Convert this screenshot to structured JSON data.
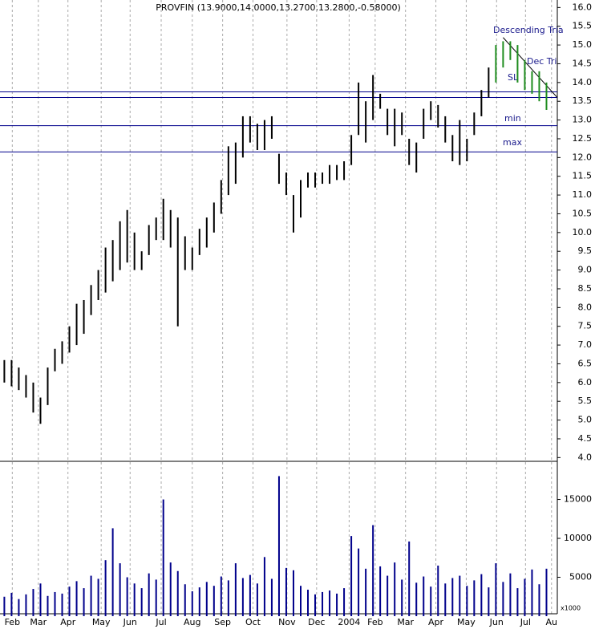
{
  "chart_data": {
    "type": "ohlc",
    "title": "PROVFIN (13.9000,14.0000,13.2700,13.2800,-0.58000)",
    "xlim": [
      -0.6,
      76.5
    ],
    "xticks": [
      {
        "value": 1.1,
        "label": "Feb"
      },
      {
        "value": 4.7,
        "label": "Mar"
      },
      {
        "value": 8.8,
        "label": "Apr"
      },
      {
        "value": 13.4,
        "label": "May"
      },
      {
        "value": 17.4,
        "label": "Jun"
      },
      {
        "value": 21.7,
        "label": "Jul"
      },
      {
        "value": 26,
        "label": "Aug"
      },
      {
        "value": 30.2,
        "label": "Sep"
      },
      {
        "value": 34.4,
        "label": "Oct"
      },
      {
        "value": 39.1,
        "label": "Nov"
      },
      {
        "value": 43.2,
        "label": "Dec"
      },
      {
        "value": 47.7,
        "label": "2004"
      },
      {
        "value": 51.3,
        "label": "Feb"
      },
      {
        "value": 55.5,
        "label": "Mar"
      },
      {
        "value": 59.7,
        "label": "Apr"
      },
      {
        "value": 63.9,
        "label": "May"
      },
      {
        "value": 68.1,
        "label": "Jun"
      },
      {
        "value": 72.1,
        "label": "Jul"
      },
      {
        "value": 75.7,
        "label": "Au"
      }
    ],
    "ylim": [
      3.9,
      16.2
    ],
    "yticks": [
      {
        "value": 4,
        "label": "4.0"
      },
      {
        "value": 4.5,
        "label": "4.5"
      },
      {
        "value": 5,
        "label": "5.0"
      },
      {
        "value": 5.5,
        "label": "5.5"
      },
      {
        "value": 6,
        "label": "6.0"
      },
      {
        "value": 6.5,
        "label": "6.5"
      },
      {
        "value": 7,
        "label": "7.0"
      },
      {
        "value": 7.5,
        "label": "7.5"
      },
      {
        "value": 8,
        "label": "8.0"
      },
      {
        "value": 8.5,
        "label": "8.5"
      },
      {
        "value": 9,
        "label": "9.0"
      },
      {
        "value": 9.5,
        "label": "9.5"
      },
      {
        "value": 10,
        "label": "10.0"
      },
      {
        "value": 10.5,
        "label": "10.5"
      },
      {
        "value": 11,
        "label": "11.0"
      },
      {
        "value": 11.5,
        "label": "11.5"
      },
      {
        "value": 12,
        "label": "12.0"
      },
      {
        "value": 12.5,
        "label": "12.5"
      },
      {
        "value": 13,
        "label": "13.0"
      },
      {
        "value": 13.5,
        "label": "13.5"
      },
      {
        "value": 14,
        "label": "14.0"
      },
      {
        "value": 14.5,
        "label": "14.5"
      },
      {
        "value": 15,
        "label": "15.0"
      },
      {
        "value": 15.5,
        "label": "15.5"
      },
      {
        "value": 16,
        "label": "16.0"
      }
    ],
    "series": [
      {
        "color": "#000000",
        "x": [
          0,
          1,
          2,
          3,
          4,
          5,
          6,
          7,
          8,
          9,
          10,
          11,
          12,
          13,
          14,
          15,
          16,
          17,
          18,
          19,
          20,
          21,
          22,
          23,
          24,
          25,
          26,
          27,
          28,
          29,
          30,
          31,
          32,
          33,
          34,
          35,
          36,
          37,
          38,
          39,
          40,
          41,
          42,
          43,
          44,
          45,
          46,
          47,
          48,
          49,
          50,
          51,
          52,
          53,
          54,
          55,
          56,
          57,
          58,
          59,
          60,
          61,
          62,
          63,
          64,
          65,
          66,
          67
        ],
        "high": [
          6.6,
          6.6,
          6.4,
          6.2,
          6.0,
          5.6,
          6.4,
          6.9,
          7.1,
          7.5,
          8.1,
          8.2,
          8.6,
          9.0,
          9.6,
          9.8,
          10.3,
          10.6,
          10.0,
          9.5,
          10.2,
          10.4,
          10.9,
          10.6,
          10.4,
          9.9,
          9.6,
          10.1,
          10.4,
          10.8,
          11.4,
          12.3,
          12.4,
          13.1,
          13.1,
          12.9,
          13.0,
          13.1,
          12.1,
          11.6,
          11.0,
          11.4,
          11.6,
          11.6,
          11.6,
          11.8,
          11.8,
          11.9,
          12.6,
          14.0,
          13.5,
          14.2,
          13.7,
          13.3,
          13.3,
          13.2,
          12.5,
          12.4,
          13.3,
          13.5,
          13.4,
          13.1,
          12.6,
          13.0,
          12.5,
          13.2,
          13.8,
          14.4
        ],
        "low": [
          6.0,
          5.9,
          5.8,
          5.6,
          5.2,
          4.9,
          5.4,
          6.3,
          6.5,
          6.8,
          7.0,
          7.3,
          7.8,
          8.2,
          8.4,
          8.7,
          9.0,
          9.2,
          9.0,
          9.0,
          9.4,
          9.8,
          9.8,
          9.6,
          7.5,
          9.0,
          9.0,
          9.4,
          9.6,
          10.0,
          10.5,
          11.0,
          11.3,
          12.0,
          12.4,
          12.2,
          12.2,
          12.5,
          11.3,
          11.0,
          10.0,
          10.4,
          11.2,
          11.2,
          11.3,
          11.3,
          11.4,
          11.4,
          11.8,
          12.6,
          12.4,
          13.0,
          13.3,
          12.6,
          12.3,
          12.6,
          11.8,
          11.6,
          12.5,
          13.0,
          12.8,
          12.4,
          11.9,
          11.8,
          11.9,
          12.6,
          13.1,
          13.6
        ]
      },
      {
        "color": "#1e8c1e",
        "x": [
          68,
          69,
          70,
          71,
          72,
          73,
          74,
          75
        ],
        "high": [
          15.0,
          15.1,
          15.1,
          15.0,
          14.6,
          14.3,
          14.3,
          14.0
        ],
        "low": [
          14.0,
          14.4,
          14.6,
          14.0,
          13.8,
          13.7,
          13.5,
          13.27
        ]
      }
    ],
    "hlines": [
      13.75,
      13.6,
      12.85,
      12.15
    ],
    "hline_color": "#00008b",
    "trendline": {
      "x": [
        69,
        76.5
      ],
      "y": [
        15.2,
        13.6
      ],
      "color": "#000000"
    },
    "annotations": [
      "Descending Tria",
      "Dec Tri",
      "SL",
      "min",
      "max"
    ],
    "volume": {
      "color": "#00008b",
      "unit_label": "x1000",
      "ylim": [
        0,
        19800
      ],
      "yticks": [
        5000,
        10000,
        15000
      ],
      "values": [
        2500,
        3000,
        2200,
        2800,
        3500,
        4200,
        2600,
        3100,
        2900,
        3800,
        4500,
        3600,
        5200,
        4800,
        7200,
        11300,
        6800,
        5000,
        4200,
        3600,
        5500,
        4700,
        15000,
        6900,
        5800,
        4100,
        3200,
        3700,
        4400,
        3900,
        5100,
        4600,
        6800,
        4900,
        5300,
        4200,
        7600,
        4800,
        18000,
        6200,
        5900,
        3900,
        3400,
        2800,
        3100,
        3300,
        2900,
        3600,
        10300,
        8700,
        6100,
        11700,
        6400,
        5200,
        6900,
        4700,
        9600,
        4300,
        5100,
        3800,
        6500,
        4200,
        4900,
        5200,
        3900,
        4600,
        5400,
        3700,
        6800,
        4400,
        5500,
        3600,
        4800,
        6000,
        4100,
        6100
      ]
    }
  }
}
